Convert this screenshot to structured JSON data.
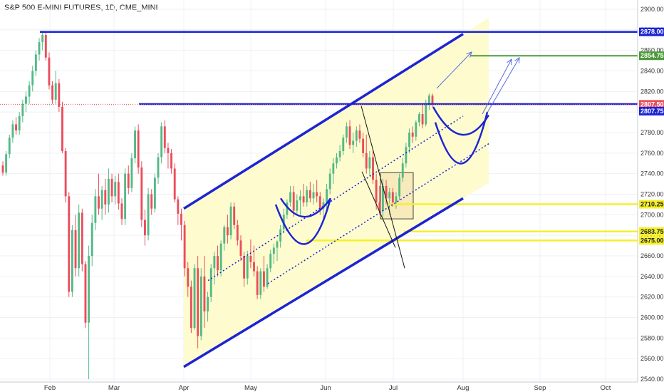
{
  "title": "S&P 500 E-MINI FUTURES, 1D, CME_MINI",
  "chart_data": {
    "type": "candlestick",
    "ylim": [
      2535,
      2910
    ],
    "y_ticks": [
      2540,
      2560,
      2580,
      2600,
      2620,
      2640,
      2660,
      2680,
      2700,
      2720,
      2740,
      2760,
      2780,
      2800,
      2820,
      2840,
      2860,
      2880,
      2900
    ],
    "x_ticks": [
      "Feb",
      "Mar",
      "Apr",
      "May",
      "Jun",
      "Jul",
      "Aug",
      "Sep",
      "Oct"
    ],
    "grid": true,
    "colors": {
      "up": "#53b987",
      "down": "#eb4d5c",
      "channel": "#1c24d4",
      "level_yellow": "#f5f02a",
      "level_green": "#4a9a3a",
      "last_price": "#eb4d5c",
      "fill": "#fefccb"
    },
    "candles": [
      [
        2748,
        2752,
        2738,
        2741
      ],
      [
        2741,
        2762,
        2738,
        2759
      ],
      [
        2759,
        2778,
        2755,
        2775
      ],
      [
        2775,
        2792,
        2770,
        2788
      ],
      [
        2788,
        2795,
        2778,
        2782
      ],
      [
        2782,
        2800,
        2778,
        2796
      ],
      [
        2796,
        2812,
        2790,
        2808
      ],
      [
        2808,
        2820,
        2800,
        2815
      ],
      [
        2815,
        2830,
        2808,
        2826
      ],
      [
        2826,
        2845,
        2820,
        2840
      ],
      [
        2840,
        2860,
        2835,
        2856
      ],
      [
        2856,
        2872,
        2850,
        2868
      ],
      [
        2868,
        2879,
        2860,
        2875
      ],
      [
        2875,
        2878,
        2850,
        2853
      ],
      [
        2853,
        2858,
        2822,
        2826
      ],
      [
        2826,
        2830,
        2808,
        2812
      ],
      [
        2812,
        2840,
        2808,
        2828
      ],
      [
        2828,
        2832,
        2800,
        2805
      ],
      [
        2805,
        2810,
        2760,
        2762
      ],
      [
        2762,
        2765,
        2712,
        2718
      ],
      [
        2718,
        2722,
        2620,
        2625
      ],
      [
        2625,
        2690,
        2620,
        2685
      ],
      [
        2685,
        2700,
        2640,
        2648
      ],
      [
        2648,
        2710,
        2640,
        2702
      ],
      [
        2702,
        2706,
        2645,
        2652
      ],
      [
        2652,
        2655,
        2590,
        2595
      ],
      [
        2595,
        2670,
        2540,
        2660
      ],
      [
        2660,
        2700,
        2650,
        2692
      ],
      [
        2692,
        2725,
        2685,
        2718
      ],
      [
        2718,
        2740,
        2700,
        2706
      ],
      [
        2706,
        2728,
        2695,
        2724
      ],
      [
        2724,
        2735,
        2700,
        2710
      ],
      [
        2710,
        2745,
        2702,
        2735
      ],
      [
        2735,
        2740,
        2712,
        2718
      ],
      [
        2718,
        2738,
        2710,
        2732
      ],
      [
        2732,
        2740,
        2705,
        2711
      ],
      [
        2711,
        2716,
        2690,
        2696
      ],
      [
        2696,
        2745,
        2690,
        2740
      ],
      [
        2740,
        2748,
        2720,
        2726
      ],
      [
        2726,
        2760,
        2722,
        2755
      ],
      [
        2755,
        2786,
        2750,
        2782
      ],
      [
        2782,
        2788,
        2740,
        2746
      ],
      [
        2746,
        2752,
        2688,
        2695
      ],
      [
        2695,
        2705,
        2670,
        2680
      ],
      [
        2680,
        2726,
        2675,
        2720
      ],
      [
        2720,
        2725,
        2700,
        2706
      ],
      [
        2706,
        2740,
        2702,
        2736
      ],
      [
        2736,
        2760,
        2730,
        2756
      ],
      [
        2756,
        2790,
        2750,
        2786
      ],
      [
        2786,
        2792,
        2760,
        2765
      ],
      [
        2765,
        2770,
        2745,
        2760
      ],
      [
        2760,
        2764,
        2740,
        2745
      ],
      [
        2745,
        2750,
        2712,
        2715
      ],
      [
        2715,
        2718,
        2690,
        2701
      ],
      [
        2701,
        2706,
        2675,
        2690
      ],
      [
        2690,
        2694,
        2640,
        2648
      ],
      [
        2648,
        2654,
        2620,
        2630
      ],
      [
        2630,
        2636,
        2585,
        2590
      ],
      [
        2590,
        2652,
        2588,
        2648
      ],
      [
        2648,
        2660,
        2570,
        2582
      ],
      [
        2582,
        2648,
        2578,
        2640
      ],
      [
        2640,
        2660,
        2590,
        2606
      ],
      [
        2606,
        2625,
        2596,
        2620
      ],
      [
        2620,
        2652,
        2615,
        2648
      ],
      [
        2648,
        2664,
        2632,
        2660
      ],
      [
        2660,
        2670,
        2640,
        2646
      ],
      [
        2646,
        2675,
        2640,
        2672
      ],
      [
        2672,
        2690,
        2665,
        2688
      ],
      [
        2688,
        2700,
        2672,
        2680
      ],
      [
        2680,
        2712,
        2676,
        2708
      ],
      [
        2708,
        2712,
        2686,
        2690
      ],
      [
        2690,
        2695,
        2670,
        2675
      ],
      [
        2675,
        2680,
        2655,
        2660
      ],
      [
        2660,
        2664,
        2630,
        2638
      ],
      [
        2638,
        2665,
        2632,
        2660
      ],
      [
        2660,
        2676,
        2648,
        2654
      ],
      [
        2654,
        2670,
        2640,
        2645
      ],
      [
        2645,
        2650,
        2618,
        2622
      ],
      [
        2622,
        2648,
        2618,
        2645
      ],
      [
        2645,
        2660,
        2625,
        2630
      ],
      [
        2630,
        2652,
        2628,
        2648
      ],
      [
        2648,
        2666,
        2644,
        2662
      ],
      [
        2662,
        2672,
        2652,
        2668
      ],
      [
        2668,
        2675,
        2655,
        2674
      ],
      [
        2674,
        2690,
        2668,
        2686
      ],
      [
        2686,
        2706,
        2682,
        2700
      ],
      [
        2700,
        2715,
        2696,
        2712
      ],
      [
        2712,
        2728,
        2708,
        2722
      ],
      [
        2722,
        2728,
        2698,
        2704
      ],
      [
        2704,
        2720,
        2700,
        2714
      ],
      [
        2714,
        2724,
        2700,
        2718
      ],
      [
        2718,
        2730,
        2708,
        2712
      ],
      [
        2712,
        2728,
        2708,
        2724
      ],
      [
        2724,
        2732,
        2712,
        2716
      ],
      [
        2716,
        2730,
        2710,
        2722
      ],
      [
        2722,
        2734,
        2712,
        2718
      ],
      [
        2718,
        2722,
        2700,
        2706
      ],
      [
        2706,
        2716,
        2694,
        2712
      ],
      [
        2712,
        2730,
        2705,
        2725
      ],
      [
        2725,
        2745,
        2720,
        2740
      ],
      [
        2740,
        2755,
        2730,
        2750
      ],
      [
        2750,
        2760,
        2745,
        2756
      ],
      [
        2756,
        2768,
        2752,
        2762
      ],
      [
        2762,
        2778,
        2758,
        2775
      ],
      [
        2775,
        2790,
        2770,
        2786
      ],
      [
        2786,
        2792,
        2764,
        2768
      ],
      [
        2768,
        2780,
        2760,
        2772
      ],
      [
        2772,
        2786,
        2766,
        2782
      ],
      [
        2782,
        2788,
        2770,
        2774
      ],
      [
        2774,
        2780,
        2756,
        2760
      ],
      [
        2760,
        2778,
        2740,
        2745
      ],
      [
        2745,
        2762,
        2738,
        2756
      ],
      [
        2756,
        2764,
        2730,
        2734
      ],
      [
        2734,
        2740,
        2705,
        2712
      ],
      [
        2712,
        2728,
        2700,
        2704
      ],
      [
        2704,
        2735,
        2698,
        2728
      ],
      [
        2728,
        2734,
        2710,
        2716
      ],
      [
        2716,
        2726,
        2700,
        2722
      ],
      [
        2722,
        2726,
        2708,
        2712
      ],
      [
        2712,
        2722,
        2706,
        2718
      ],
      [
        2718,
        2740,
        2714,
        2736
      ],
      [
        2736,
        2755,
        2732,
        2750
      ],
      [
        2750,
        2770,
        2746,
        2766
      ],
      [
        2766,
        2784,
        2760,
        2780
      ],
      [
        2780,
        2786,
        2770,
        2776
      ],
      [
        2776,
        2792,
        2772,
        2790
      ],
      [
        2790,
        2800,
        2786,
        2798
      ],
      [
        2798,
        2808,
        2784,
        2788
      ],
      [
        2788,
        2812,
        2786,
        2808
      ],
      [
        2808,
        2818,
        2802,
        2816
      ],
      [
        2816,
        2818,
        2805,
        2808
      ]
    ],
    "channel_lines": [
      {
        "name": "upper",
        "from": [
          "Apr",
          2706
        ],
        "to": [
          "Aug",
          2876
        ]
      },
      {
        "name": "lower",
        "from": [
          "Apr",
          2552
        ],
        "to": [
          "Aug",
          2716
        ]
      },
      {
        "name": "mid1",
        "from": [
          "Apr",
          2636
        ],
        "to": [
          "Aug",
          2796
        ]
      },
      {
        "name": "mid2",
        "from": [
          "May",
          2640
        ],
        "to": [
          "Aug",
          2770
        ]
      }
    ],
    "levels": [
      {
        "value": 2878.0,
        "label": "2878.00",
        "color": "#1c24d4"
      },
      {
        "value": 2854.75,
        "label": "2854.75",
        "color": "#4a9a3a"
      },
      {
        "value": 2807.5,
        "label": "2807.50",
        "color": "#eb4d5c"
      },
      {
        "value": 2807.75,
        "label": "2807.75",
        "color": "#1c24d4"
      },
      {
        "value": 2710.25,
        "label": "2710.25",
        "color": "#f5f02a"
      },
      {
        "value": 2683.75,
        "label": "2683.75",
        "color": "#f5f02a"
      },
      {
        "value": 2675.0,
        "label": "2675.00",
        "color": "#f5f02a"
      }
    ]
  }
}
